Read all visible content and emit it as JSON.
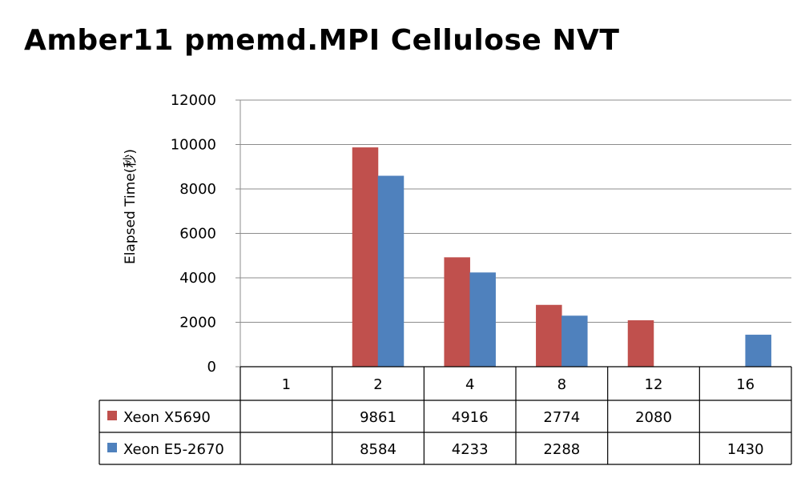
{
  "chart_data": {
    "type": "bar",
    "title": "Amber11 pmemd.MPI Cellulose NVT",
    "ylabel": "Elapsed Time(秒)",
    "xlabel": "",
    "ylim": [
      0,
      12000
    ],
    "yticks": [
      0,
      2000,
      4000,
      6000,
      8000,
      10000,
      12000
    ],
    "grid": true,
    "legend_placement": "data table",
    "categories": [
      "1",
      "2",
      "4",
      "8",
      "12",
      "16"
    ],
    "series": [
      {
        "name": "Xeon X5690",
        "color": "#c0504d",
        "values": [
          null,
          9861,
          4916,
          2774,
          2080,
          null
        ]
      },
      {
        "name": "Xeon E5-2670",
        "color": "#4f81bd",
        "values": [
          null,
          8584,
          4233,
          2288,
          null,
          1430
        ]
      }
    ]
  }
}
